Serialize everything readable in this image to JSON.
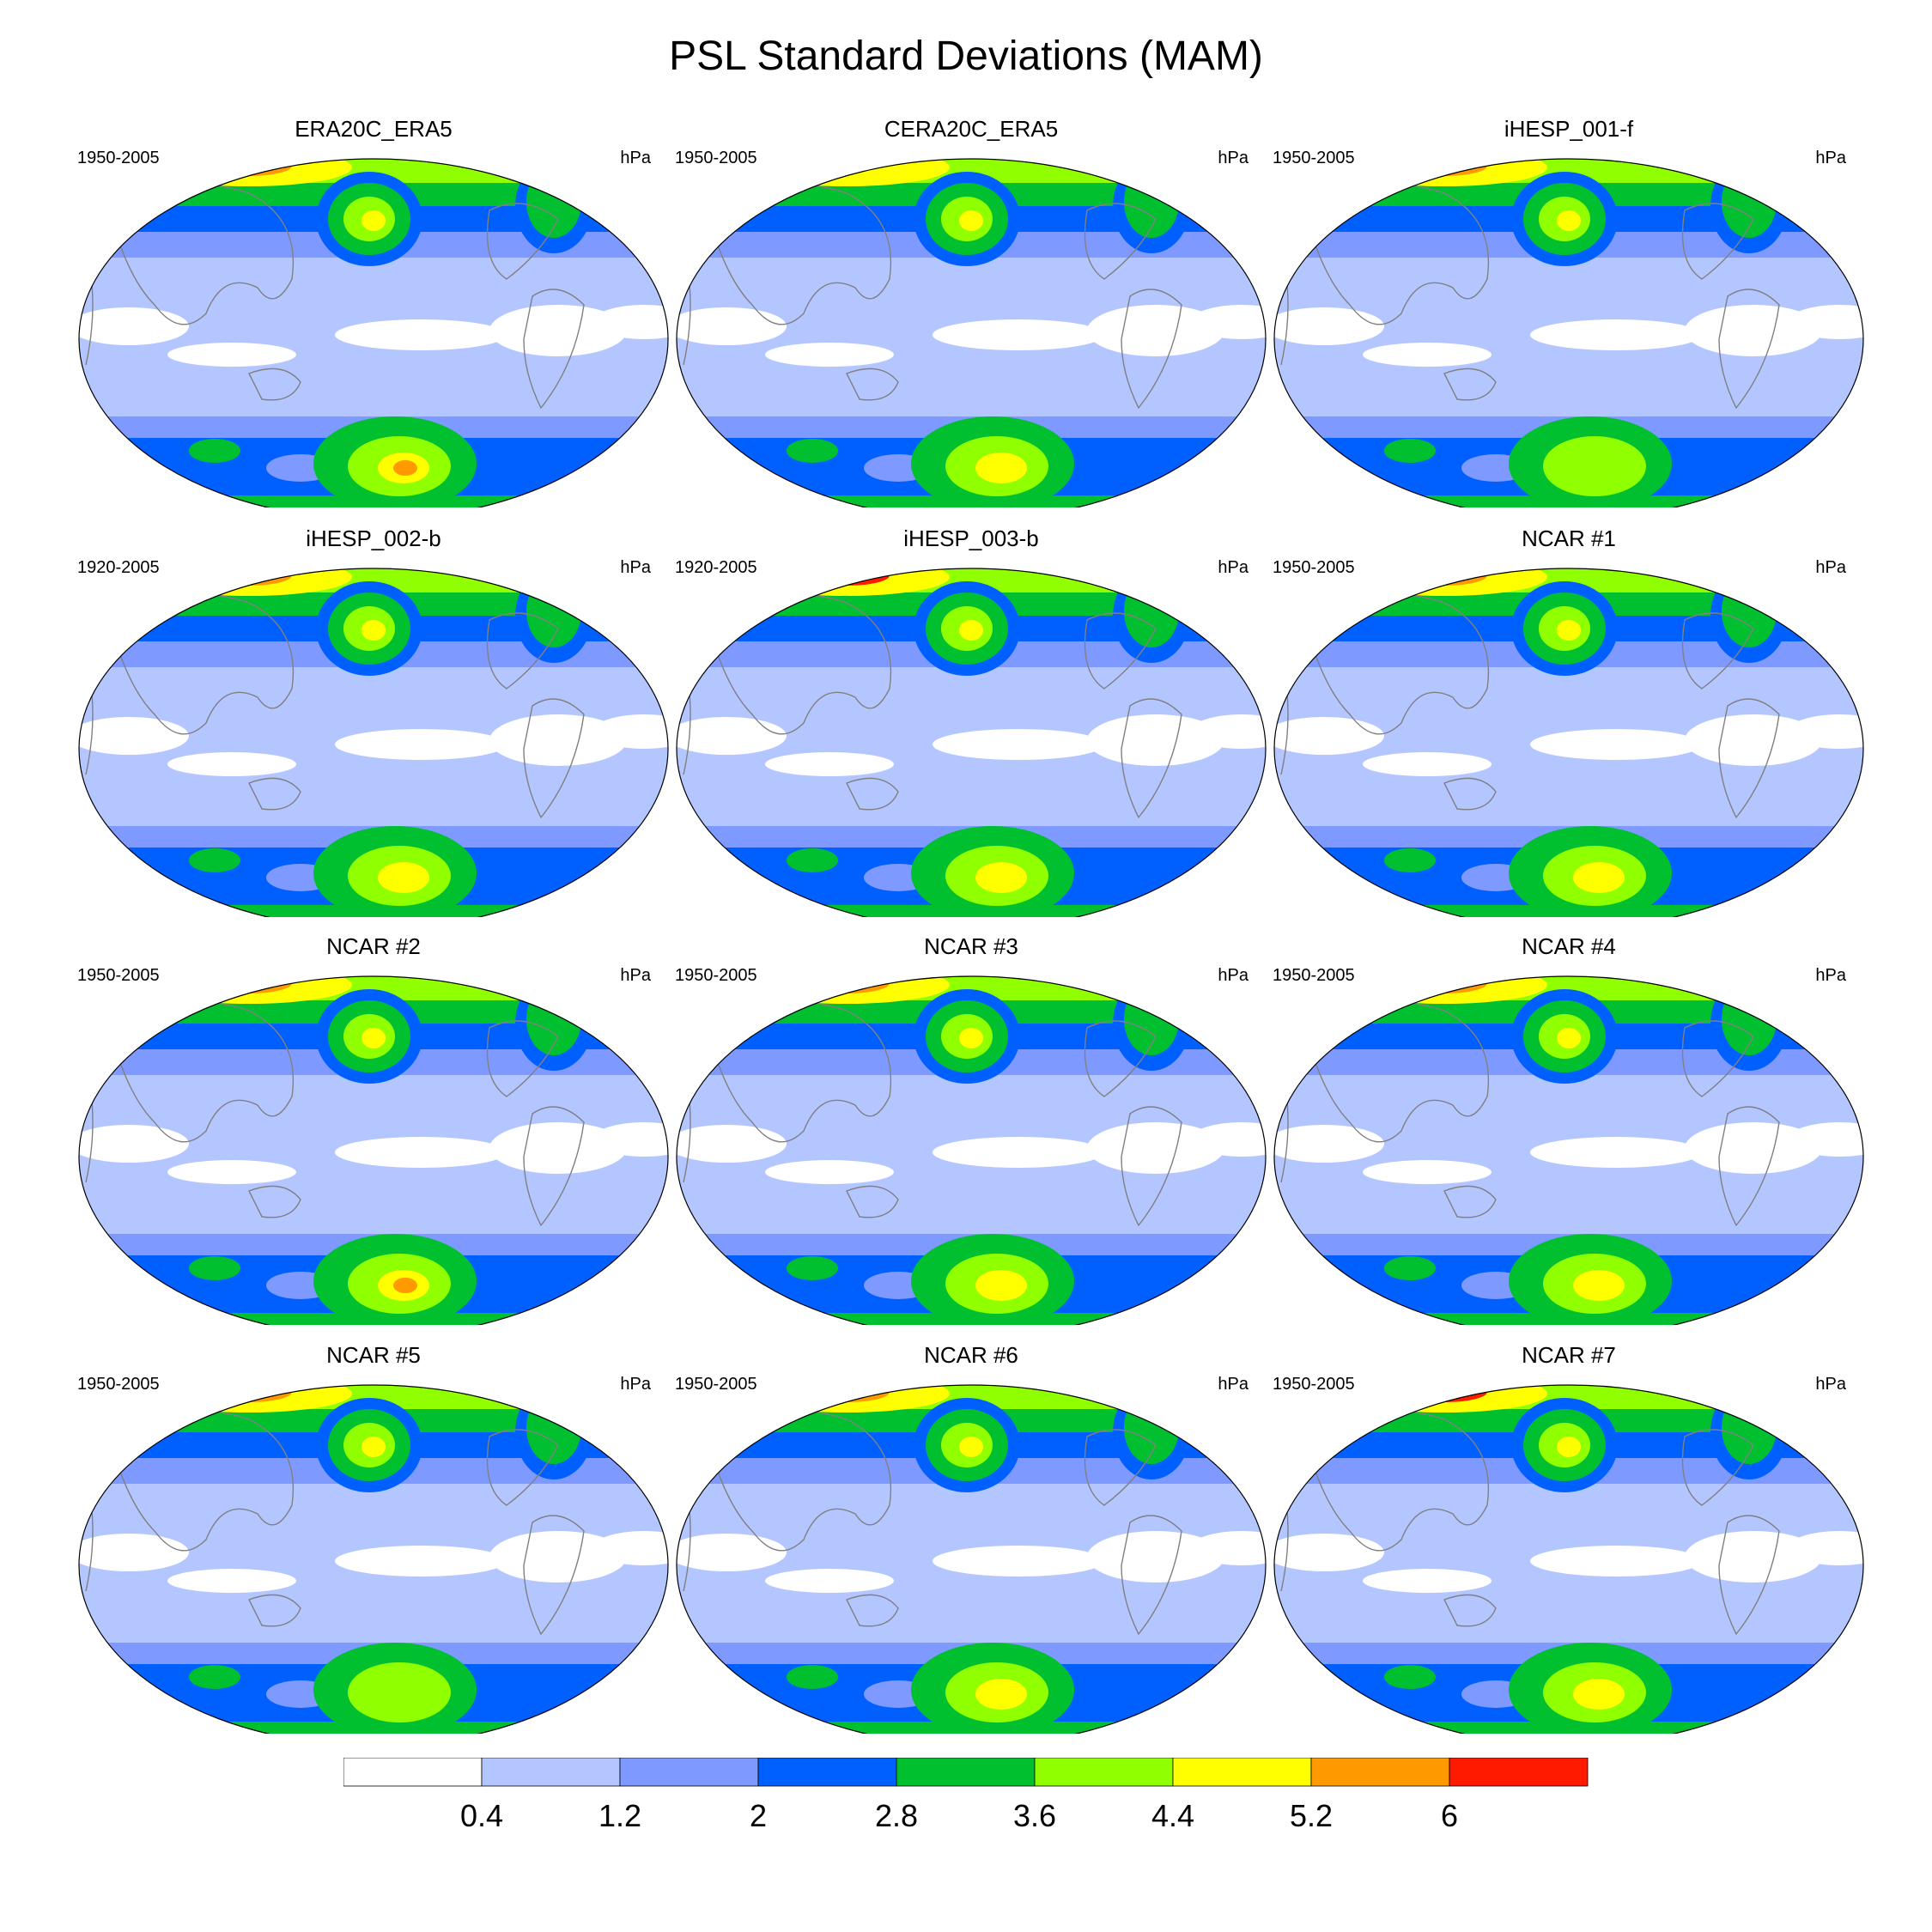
{
  "title": "PSL Standard Deviations (MAM)",
  "unit": "hPa",
  "colors": [
    "#ffffff",
    "#b4c6ff",
    "#7e99ff",
    "#0060ff",
    "#00c030",
    "#90ff00",
    "#ffff00",
    "#ff9900",
    "#ff1a00"
  ],
  "land_color": "#808080",
  "panels": [
    {
      "name": "ERA20C_ERA5",
      "period": "1950-2005",
      "n_hot": "#ff9900",
      "s_hot": "#ff9900",
      "s_max": 6
    },
    {
      "name": "CERA20C_ERA5",
      "period": "1950-2005",
      "n_hot": "#ffff00",
      "s_hot": "#ffff00",
      "s_max": 5
    },
    {
      "name": "iHESP_001-f",
      "period": "1950-2005",
      "n_hot": "#ff9900",
      "s_hot": "#90ff00",
      "s_max": 4
    },
    {
      "name": "iHESP_002-b",
      "period": "1920-2005",
      "n_hot": "#ff9900",
      "s_hot": "#ffff00",
      "s_max": 5
    },
    {
      "name": "iHESP_003-b",
      "period": "1920-2005",
      "n_hot": "#ff1a00",
      "s_hot": "#ffff00",
      "s_max": 5
    },
    {
      "name": "NCAR #1",
      "period": "1950-2005",
      "n_hot": "#ff9900",
      "s_hot": "#ffff00",
      "s_max": 5
    },
    {
      "name": "NCAR #2",
      "period": "1950-2005",
      "n_hot": "#ff9900",
      "s_hot": "#ff9900",
      "s_max": 6
    },
    {
      "name": "NCAR #3",
      "period": "1950-2005",
      "n_hot": "#ff9900",
      "s_hot": "#ffff00",
      "s_max": 5
    },
    {
      "name": "NCAR #4",
      "period": "1950-2005",
      "n_hot": "#ff9900",
      "s_hot": "#ffff00",
      "s_max": 5
    },
    {
      "name": "NCAR #5",
      "period": "1950-2005",
      "n_hot": "#ff9900",
      "s_hot": "#90ff00",
      "s_max": 4
    },
    {
      "name": "NCAR #6",
      "period": "1950-2005",
      "n_hot": "#ff9900",
      "s_hot": "#ffff00",
      "s_max": 5
    },
    {
      "name": "NCAR #7",
      "period": "1950-2005",
      "n_hot": "#ff1a00",
      "s_hot": "#ffff00",
      "s_max": 5
    }
  ],
  "colorbar": {
    "labels": [
      "0.4",
      "1.2",
      "2",
      "2.8",
      "3.6",
      "4.4",
      "5.2",
      "6"
    ]
  }
}
